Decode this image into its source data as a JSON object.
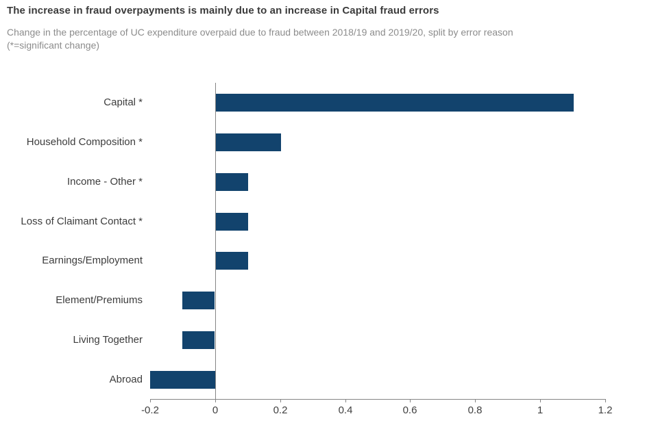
{
  "header": {
    "title": "The increase in fraud overpayments is mainly due to an increase in Capital fraud errors",
    "subtitle": "Change in the percentage of UC expenditure overpaid due to fraud between 2018/19 and 2019/20, split by error reason (*=significant change)"
  },
  "colors": {
    "bar": "#12436d",
    "axis_line": "#848484",
    "title_text": "#3b3b3b",
    "subtitle_text": "#8c8c8c",
    "tick_label_text": "#404040",
    "category_label_text": "#3c3c3c"
  },
  "chart_data": {
    "type": "bar",
    "orientation": "horizontal",
    "title": "The increase in fraud overpayments is mainly due to an increase in Capital fraud errors",
    "subtitle": "Change in the percentage of UC expenditure overpaid due to fraud between 2018/19 and 2019/20, split by error reason (*=significant change)",
    "categories": [
      "Capital *",
      "Household Composition *",
      "Income - Other *",
      "Loss of Claimant Contact *",
      "Earnings/Employment",
      "Element/Premiums",
      "Living Together",
      "Abroad"
    ],
    "values": [
      1.1,
      0.2,
      0.1,
      0.1,
      0.1,
      -0.1,
      -0.1,
      -0.2
    ],
    "xlabel": "",
    "ylabel": "",
    "xlim": [
      -0.2,
      1.2
    ],
    "x_ticks": [
      -0.2,
      0,
      0.2,
      0.4,
      0.6,
      0.8,
      1,
      1.2
    ],
    "x_tick_labels": [
      "-0.2",
      "0",
      "0.2",
      "0.4",
      "0.6",
      "0.8",
      "1",
      "1.2"
    ],
    "grid": false,
    "legend": false
  }
}
